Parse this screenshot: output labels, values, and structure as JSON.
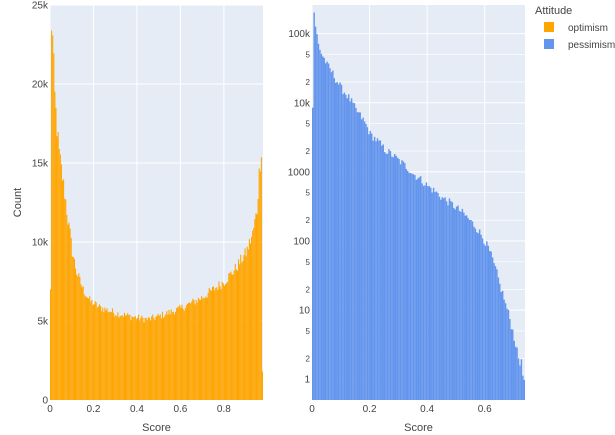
{
  "chart_data": [
    {
      "type": "bar",
      "series_name": "optimism",
      "xlabel": "Score",
      "ylabel": "Count",
      "xlim": [
        0,
        0.98
      ],
      "ylim": [
        0,
        25000
      ],
      "bin_width": 0.005,
      "color": "#FFA500",
      "x_ticks": [
        0,
        0.2,
        0.4,
        0.6,
        0.8
      ],
      "x_tick_labels": [
        "0",
        "0.2",
        "0.4",
        "0.6",
        "0.8"
      ],
      "y_ticks": [
        0,
        5000,
        10000,
        15000,
        20000,
        25000
      ],
      "y_tick_labels": [
        "0",
        "5k",
        "10k",
        "15k",
        "20k",
        "25k"
      ],
      "profile": [
        [
          0.0,
          7000
        ],
        [
          0.005,
          23800
        ],
        [
          0.01,
          22800
        ],
        [
          0.015,
          21000
        ],
        [
          0.02,
          19200
        ],
        [
          0.03,
          17200
        ],
        [
          0.04,
          15600
        ],
        [
          0.05,
          14600
        ],
        [
          0.06,
          13600
        ],
        [
          0.07,
          12600
        ],
        [
          0.08,
          11400
        ],
        [
          0.09,
          10500
        ],
        [
          0.1,
          9400
        ],
        [
          0.12,
          8100
        ],
        [
          0.15,
          7000
        ],
        [
          0.18,
          6300
        ],
        [
          0.22,
          5900
        ],
        [
          0.3,
          5500
        ],
        [
          0.4,
          5200
        ],
        [
          0.45,
          5100
        ],
        [
          0.5,
          5300
        ],
        [
          0.6,
          5800
        ],
        [
          0.7,
          6500
        ],
        [
          0.8,
          7500
        ],
        [
          0.85,
          8300
        ],
        [
          0.9,
          9300
        ],
        [
          0.93,
          10500
        ],
        [
          0.95,
          12000
        ],
        [
          0.96,
          14300
        ],
        [
          0.97,
          15900
        ],
        [
          0.975,
          1800
        ]
      ]
    },
    {
      "type": "bar",
      "series_name": "pessimism",
      "xlabel": "Score",
      "ylabel": "",
      "xlim": [
        0,
        0.74
      ],
      "y_scale": "log",
      "ylim": [
        0.5,
        260000
      ],
      "bin_width": 0.005,
      "color": "#6495ED",
      "x_ticks": [
        0,
        0.2,
        0.4,
        0.6
      ],
      "x_tick_labels": [
        "0",
        "0.2",
        "0.4",
        "0.6"
      ],
      "y_major_ticks": [
        1,
        10,
        100,
        1000,
        10000,
        100000
      ],
      "y_major_labels": [
        "1",
        "10",
        "100",
        "1000",
        "10k",
        "100k"
      ],
      "y_minor_ticks": [
        2,
        5,
        20,
        50,
        200,
        500,
        2000,
        5000,
        20000,
        50000
      ],
      "y_minor_labels": [
        "2",
        "5",
        "2",
        "5",
        "2",
        "5",
        "2",
        "5",
        "2",
        "5"
      ],
      "profile": [
        [
          0.0,
          8500
        ],
        [
          0.005,
          210000
        ],
        [
          0.01,
          120000
        ],
        [
          0.02,
          70000
        ],
        [
          0.03,
          52000
        ],
        [
          0.05,
          35000
        ],
        [
          0.08,
          22000
        ],
        [
          0.1,
          16000
        ],
        [
          0.15,
          7800
        ],
        [
          0.2,
          3500
        ],
        [
          0.25,
          2100
        ],
        [
          0.3,
          1450
        ],
        [
          0.35,
          930
        ],
        [
          0.4,
          620
        ],
        [
          0.45,
          420
        ],
        [
          0.5,
          300
        ],
        [
          0.55,
          190
        ],
        [
          0.6,
          95
        ],
        [
          0.63,
          45
        ],
        [
          0.65,
          23
        ],
        [
          0.67,
          12
        ],
        [
          0.69,
          6
        ],
        [
          0.7,
          4
        ],
        [
          0.71,
          2.5
        ],
        [
          0.72,
          1.6
        ],
        [
          0.725,
          2.2
        ],
        [
          0.73,
          1
        ],
        [
          0.735,
          1
        ]
      ]
    }
  ],
  "legend": {
    "title": "Attitude",
    "items": [
      {
        "label": "optimism",
        "color": "#FFA500"
      },
      {
        "label": "pessimism",
        "color": "#6495ED"
      }
    ]
  }
}
